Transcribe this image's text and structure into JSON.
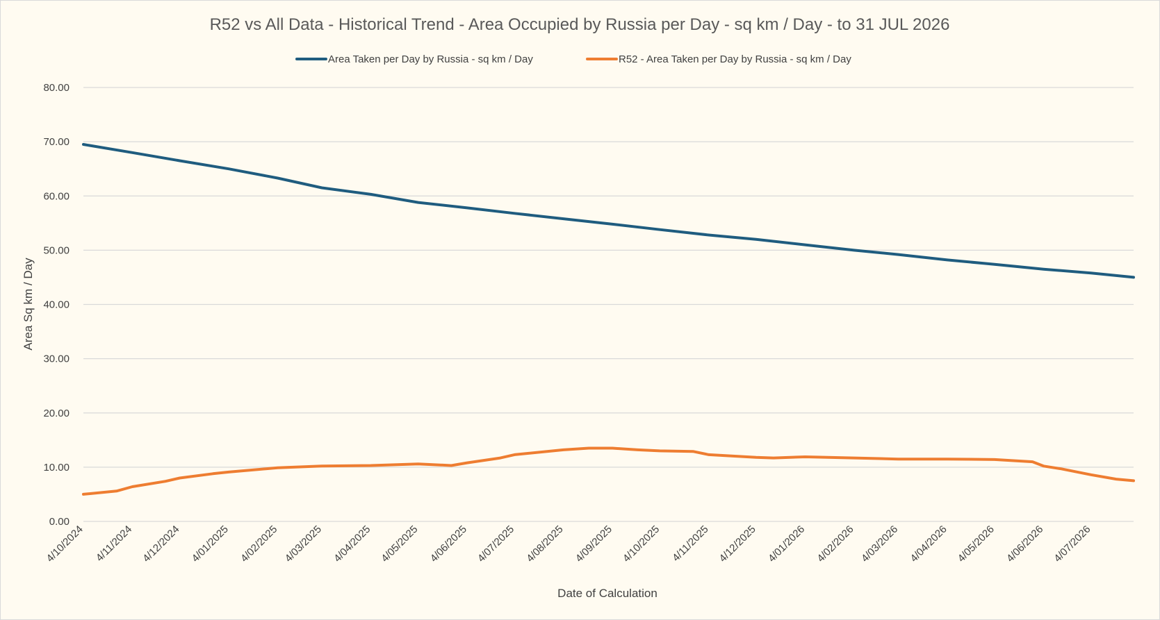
{
  "chart_data": {
    "type": "line",
    "title": "R52 vs All Data - Historical Trend - Area Occupied by Russia per Day - sq km / Day - to 31 JUL 2026",
    "xlabel": "Date of Calculation",
    "ylabel": "Area Sq km / Day",
    "ylim": [
      0,
      80
    ],
    "y_ticks": [
      "0.00",
      "10.00",
      "20.00",
      "30.00",
      "40.00",
      "50.00",
      "60.00",
      "70.00",
      "80.00"
    ],
    "x_ticks": [
      "4/10/2024",
      "4/11/2024",
      "4/12/2024",
      "4/01/2025",
      "4/02/2025",
      "4/03/2025",
      "4/04/2025",
      "4/05/2025",
      "4/06/2025",
      "4/07/2025",
      "4/08/2025",
      "4/09/2025",
      "4/10/2025",
      "4/11/2025",
      "4/12/2025",
      "4/01/2026",
      "4/02/2026",
      "4/03/2026",
      "4/04/2026",
      "4/05/2026",
      "4/06/2026",
      "4/07/2026"
    ],
    "x_start": "2024-10-04",
    "x_end": "2026-07-31",
    "grid": true,
    "legend_position": "top",
    "series": [
      {
        "name": "Area Taken per Day by Russia - sq km / Day",
        "color": "#1f5c7f",
        "points": [
          [
            "2024-10-04",
            69.5
          ],
          [
            "2024-11-04",
            68.0
          ],
          [
            "2024-12-04",
            66.5
          ],
          [
            "2025-01-04",
            65.0
          ],
          [
            "2025-02-04",
            63.3
          ],
          [
            "2025-03-04",
            61.5
          ],
          [
            "2025-04-04",
            60.3
          ],
          [
            "2025-05-04",
            58.8
          ],
          [
            "2025-06-04",
            57.8
          ],
          [
            "2025-07-04",
            56.8
          ],
          [
            "2025-08-04",
            55.8
          ],
          [
            "2025-09-04",
            54.8
          ],
          [
            "2025-10-04",
            53.8
          ],
          [
            "2025-11-04",
            52.8
          ],
          [
            "2025-12-04",
            52.0
          ],
          [
            "2026-01-04",
            51.0
          ],
          [
            "2026-02-04",
            50.0
          ],
          [
            "2026-03-04",
            49.2
          ],
          [
            "2026-04-04",
            48.2
          ],
          [
            "2026-05-04",
            47.4
          ],
          [
            "2026-06-04",
            46.5
          ],
          [
            "2026-07-04",
            45.8
          ],
          [
            "2026-07-31",
            45.0
          ]
        ]
      },
      {
        "name": "R52 - Area Taken per Day by Russia - sq km / Day",
        "color": "#ee7d31",
        "points": [
          [
            "2024-10-04",
            5.0
          ],
          [
            "2024-10-25",
            5.6
          ],
          [
            "2024-11-04",
            6.4
          ],
          [
            "2024-11-25",
            7.4
          ],
          [
            "2024-12-04",
            8.0
          ],
          [
            "2024-12-25",
            8.8
          ],
          [
            "2025-01-04",
            9.1
          ],
          [
            "2025-02-04",
            9.9
          ],
          [
            "2025-03-04",
            10.2
          ],
          [
            "2025-04-04",
            10.3
          ],
          [
            "2025-05-04",
            10.6
          ],
          [
            "2025-05-25",
            10.3
          ],
          [
            "2025-06-04",
            10.8
          ],
          [
            "2025-06-25",
            11.7
          ],
          [
            "2025-07-04",
            12.3
          ],
          [
            "2025-08-04",
            13.2
          ],
          [
            "2025-08-20",
            13.5
          ],
          [
            "2025-09-04",
            13.5
          ],
          [
            "2025-09-20",
            13.2
          ],
          [
            "2025-10-04",
            13.0
          ],
          [
            "2025-10-25",
            12.9
          ],
          [
            "2025-11-04",
            12.3
          ],
          [
            "2025-12-04",
            11.8
          ],
          [
            "2025-12-15",
            11.7
          ],
          [
            "2026-01-04",
            11.9
          ],
          [
            "2026-02-04",
            11.7
          ],
          [
            "2026-03-04",
            11.5
          ],
          [
            "2026-04-04",
            11.5
          ],
          [
            "2026-05-04",
            11.4
          ],
          [
            "2026-05-28",
            11.0
          ],
          [
            "2026-06-04",
            10.2
          ],
          [
            "2026-06-15",
            9.7
          ],
          [
            "2026-07-04",
            8.6
          ],
          [
            "2026-07-20",
            7.8
          ],
          [
            "2026-07-31",
            7.5
          ]
        ]
      }
    ]
  }
}
